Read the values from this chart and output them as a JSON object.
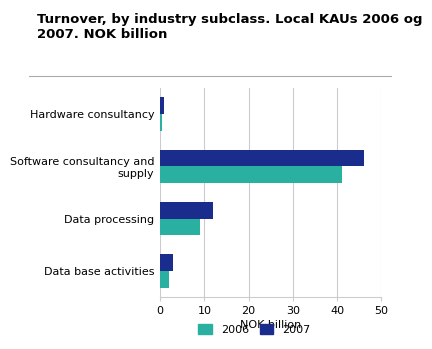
{
  "title": "Turnover, by industry subclass. Local KAUs 2006 og\n2007. NOK billion",
  "categories": [
    "Hardware consultancy",
    "Software consultancy and\nsupply",
    "Data processing",
    "Data base activities"
  ],
  "values_2006": [
    0.5,
    41,
    9,
    2.0
  ],
  "values_2007": [
    0.8,
    46,
    12,
    3.0
  ],
  "color_2006": "#2ab0a0",
  "color_2007": "#1a2d8c",
  "xlabel": "NOK billion",
  "xlim": [
    0,
    50
  ],
  "xticks": [
    0,
    10,
    20,
    30,
    40,
    50
  ],
  "legend_labels": [
    "2006",
    "2007"
  ],
  "bar_height": 0.32,
  "background_color": "#ffffff",
  "grid_color": "#cccccc",
  "title_fontsize": 9.5,
  "label_fontsize": 8,
  "tick_fontsize": 8
}
